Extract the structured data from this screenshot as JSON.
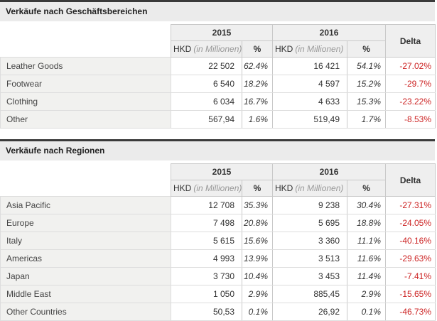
{
  "colors": {
    "delta_negative": "#cc2222",
    "title_bar_bg": "#ebebeb",
    "title_bar_border": "#3a3a3a",
    "header_bg": "#efefef",
    "label_column_bg": "#f1f1ef"
  },
  "sections": [
    {
      "title": "Verkäufe nach Geschäftsbereichen",
      "header": {
        "year1": "2015",
        "year2": "2016",
        "delta": "Delta",
        "hkd": "HKD",
        "hkd_unit": "(in Millionen)",
        "pct": "%"
      },
      "rows": [
        {
          "label": "Leather Goods",
          "hkd_2015": "22 502",
          "pct_2015": "62.4%",
          "hkd_2016": "16 421",
          "pct_2016": "54.1%",
          "delta": "-27.02%"
        },
        {
          "label": "Footwear",
          "hkd_2015": "6 540",
          "pct_2015": "18.2%",
          "hkd_2016": "4 597",
          "pct_2016": "15.2%",
          "delta": "-29.7%"
        },
        {
          "label": "Clothing",
          "hkd_2015": "6 034",
          "pct_2015": "16.7%",
          "hkd_2016": "4 633",
          "pct_2016": "15.3%",
          "delta": "-23.22%"
        },
        {
          "label": "Other",
          "hkd_2015": "567,94",
          "pct_2015": "1.6%",
          "hkd_2016": "519,49",
          "pct_2016": "1.7%",
          "delta": "-8.53%"
        }
      ]
    },
    {
      "title": "Verkäufe nach Regionen",
      "header": {
        "year1": "2015",
        "year2": "2016",
        "delta": "Delta",
        "hkd": "HKD",
        "hkd_unit": "(in Millionen)",
        "pct": "%"
      },
      "rows": [
        {
          "label": "Asia Pacific",
          "hkd_2015": "12 708",
          "pct_2015": "35.3%",
          "hkd_2016": "9 238",
          "pct_2016": "30.4%",
          "delta": "-27.31%"
        },
        {
          "label": "Europe",
          "hkd_2015": "7 498",
          "pct_2015": "20.8%",
          "hkd_2016": "5 695",
          "pct_2016": "18.8%",
          "delta": "-24.05%"
        },
        {
          "label": "Italy",
          "hkd_2015": "5 615",
          "pct_2015": "15.6%",
          "hkd_2016": "3 360",
          "pct_2016": "11.1%",
          "delta": "-40.16%"
        },
        {
          "label": "Americas",
          "hkd_2015": "4 993",
          "pct_2015": "13.9%",
          "hkd_2016": "3 513",
          "pct_2016": "11.6%",
          "delta": "-29.63%"
        },
        {
          "label": "Japan",
          "hkd_2015": "3 730",
          "pct_2015": "10.4%",
          "hkd_2016": "3 453",
          "pct_2016": "11.4%",
          "delta": "-7.41%"
        },
        {
          "label": "Middle East",
          "hkd_2015": "1 050",
          "pct_2015": "2.9%",
          "hkd_2016": "885,45",
          "pct_2016": "2.9%",
          "delta": "-15.65%"
        },
        {
          "label": "Other Countries",
          "hkd_2015": "50,53",
          "pct_2015": "0.1%",
          "hkd_2016": "26,92",
          "pct_2016": "0.1%",
          "delta": "-46.73%"
        }
      ]
    }
  ]
}
